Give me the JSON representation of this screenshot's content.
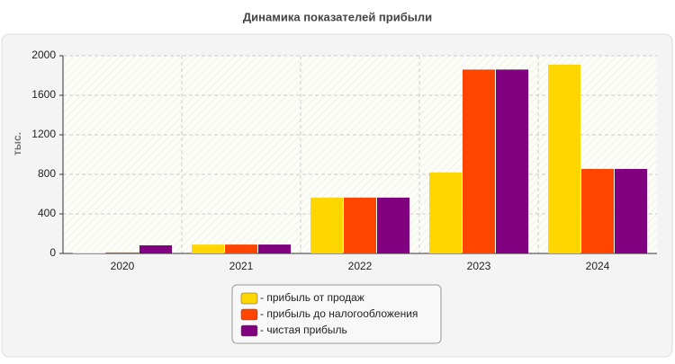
{
  "chart_data": {
    "type": "bar",
    "title": "Динамика показателей прибыли",
    "y_label": "тыс.",
    "categories": [
      "2020",
      "2021",
      "2022",
      "2023",
      "2024"
    ],
    "series": [
      {
        "name": "- прибыль от продаж",
        "color": "#ffd700",
        "values": [
          5,
          90,
          565,
          820,
          1910
        ]
      },
      {
        "name": "- прибыль до налогообложения",
        "color": "#ff4500",
        "values": [
          10,
          90,
          565,
          1860,
          855
        ]
      },
      {
        "name": "- чистая прибыль",
        "color": "#800080",
        "values": [
          82,
          90,
          565,
          1860,
          855
        ]
      }
    ],
    "ylim": [
      0,
      2000
    ],
    "yticks": [
      0,
      400,
      800,
      1200,
      1600,
      2000
    ],
    "grid": true
  }
}
